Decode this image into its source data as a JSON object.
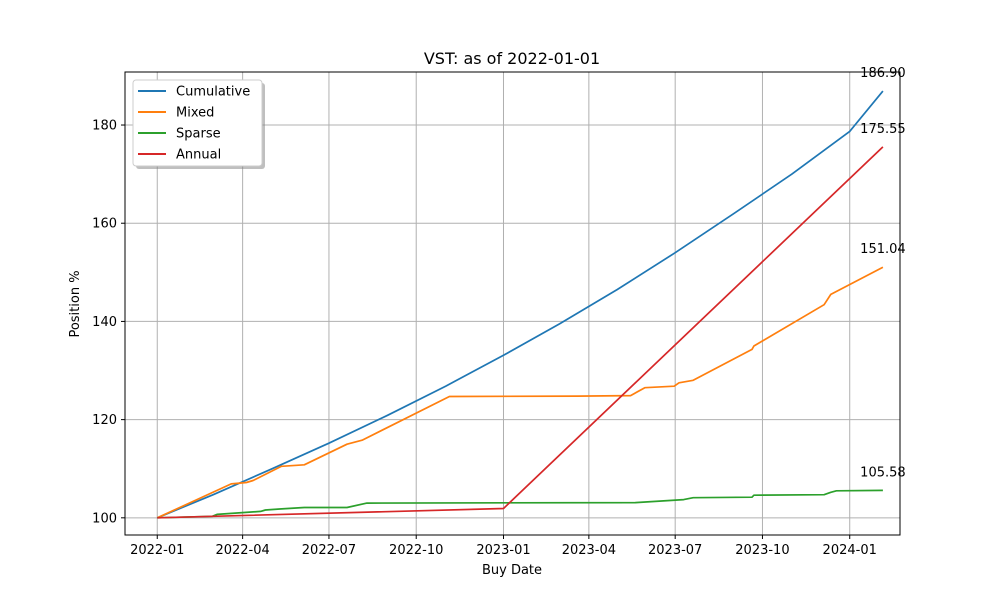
{
  "chart_data": {
    "type": "line",
    "title": "VST: as of 2022-01-01",
    "xlabel": "Buy Date",
    "ylabel": "Position %",
    "xlim": [
      "2021-11-28",
      "2024-02-23"
    ],
    "ylim": [
      96.5,
      190.8
    ],
    "x_ticks": [
      "2022-01",
      "2022-04",
      "2022-07",
      "2022-10",
      "2023-01",
      "2023-04",
      "2023-07",
      "2023-10",
      "2024-01"
    ],
    "y_ticks": [
      100,
      120,
      140,
      160,
      180
    ],
    "grid": true,
    "legend": "upper-left",
    "series": [
      {
        "name": "Cumulative",
        "color": "#1f77b4",
        "end_label": "186.90",
        "points": [
          [
            "2022-01-01",
            100
          ],
          [
            "2022-03-01",
            104.7
          ],
          [
            "2022-05-01",
            109.9
          ],
          [
            "2022-07-01",
            115.2
          ],
          [
            "2022-09-01",
            120.9
          ],
          [
            "2022-11-01",
            126.8
          ],
          [
            "2023-01-01",
            133.1
          ],
          [
            "2023-03-01",
            139.5
          ],
          [
            "2023-05-01",
            146.5
          ],
          [
            "2023-07-01",
            154.0
          ],
          [
            "2023-09-01",
            162.0
          ],
          [
            "2023-11-01",
            170.0
          ],
          [
            "2024-01-01",
            178.7
          ],
          [
            "2024-02-05",
            186.9
          ]
        ]
      },
      {
        "name": "Mixed",
        "color": "#ff7f0e",
        "end_label": "151.04",
        "points": [
          [
            "2022-01-01",
            100
          ],
          [
            "2022-03-20",
            106.9
          ],
          [
            "2022-04-05",
            107.2
          ],
          [
            "2022-04-12",
            107.6
          ],
          [
            "2022-05-12",
            110.5
          ],
          [
            "2022-06-05",
            110.8
          ],
          [
            "2022-07-20",
            115.0
          ],
          [
            "2022-08-05",
            115.8
          ],
          [
            "2022-11-05",
            124.7
          ],
          [
            "2023-03-20",
            124.8
          ],
          [
            "2023-05-15",
            124.9
          ],
          [
            "2023-05-30",
            126.5
          ],
          [
            "2023-06-30",
            126.8
          ],
          [
            "2023-07-05",
            127.5
          ],
          [
            "2023-07-20",
            128.0
          ],
          [
            "2023-09-20",
            134.3
          ],
          [
            "2023-09-22",
            135.0
          ],
          [
            "2023-12-05",
            143.4
          ],
          [
            "2023-12-12",
            145.5
          ],
          [
            "2024-02-05",
            151.04
          ]
        ]
      },
      {
        "name": "Sparse",
        "color": "#2ca02c",
        "end_label": "105.58",
        "points": [
          [
            "2022-01-01",
            100
          ],
          [
            "2022-02-28",
            100.3
          ],
          [
            "2022-03-05",
            100.7
          ],
          [
            "2022-04-20",
            101.3
          ],
          [
            "2022-04-25",
            101.6
          ],
          [
            "2022-05-10",
            101.8
          ],
          [
            "2022-06-05",
            102.1
          ],
          [
            "2022-07-20",
            102.1
          ],
          [
            "2022-08-10",
            103.0
          ],
          [
            "2023-05-20",
            103.1
          ],
          [
            "2023-07-10",
            103.7
          ],
          [
            "2023-07-20",
            104.1
          ],
          [
            "2023-09-20",
            104.2
          ],
          [
            "2023-09-22",
            104.6
          ],
          [
            "2023-12-05",
            104.7
          ],
          [
            "2023-12-12",
            105.2
          ],
          [
            "2023-12-18",
            105.5
          ],
          [
            "2024-02-05",
            105.58
          ]
        ]
      },
      {
        "name": "Annual",
        "color": "#d62728",
        "end_label": "175.55",
        "points": [
          [
            "2022-01-01",
            100
          ],
          [
            "2023-01-01",
            101.9
          ],
          [
            "2024-02-05",
            175.55
          ]
        ]
      }
    ]
  }
}
